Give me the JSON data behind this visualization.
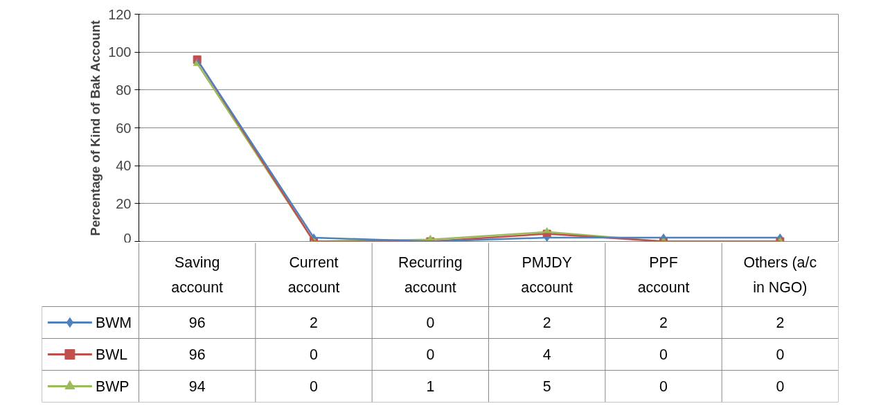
{
  "chart_data": {
    "type": "line",
    "ylabel": "Percentage of Kind of Bak Account",
    "categories": [
      "Saving account",
      "Current account",
      "Recurring account",
      "PMJDY account",
      "PPF account",
      "Others (a/c in NGO)"
    ],
    "series": [
      {
        "name": "BWM",
        "color": "#4f81bd",
        "marker": "diamond",
        "values": [
          96,
          2,
          0,
          2,
          2,
          2
        ]
      },
      {
        "name": "BWL",
        "color": "#c0504d",
        "marker": "square",
        "values": [
          96,
          0,
          0,
          4,
          0,
          0
        ]
      },
      {
        "name": "BWP",
        "color": "#9bbb59",
        "marker": "triangle",
        "values": [
          94,
          0,
          1,
          5,
          0,
          0
        ]
      }
    ],
    "ylim": [
      0,
      120
    ],
    "yticks": [
      0,
      20,
      40,
      60,
      80,
      100,
      120
    ],
    "grid": "y",
    "data_labels": true,
    "legend": "bottom left"
  }
}
